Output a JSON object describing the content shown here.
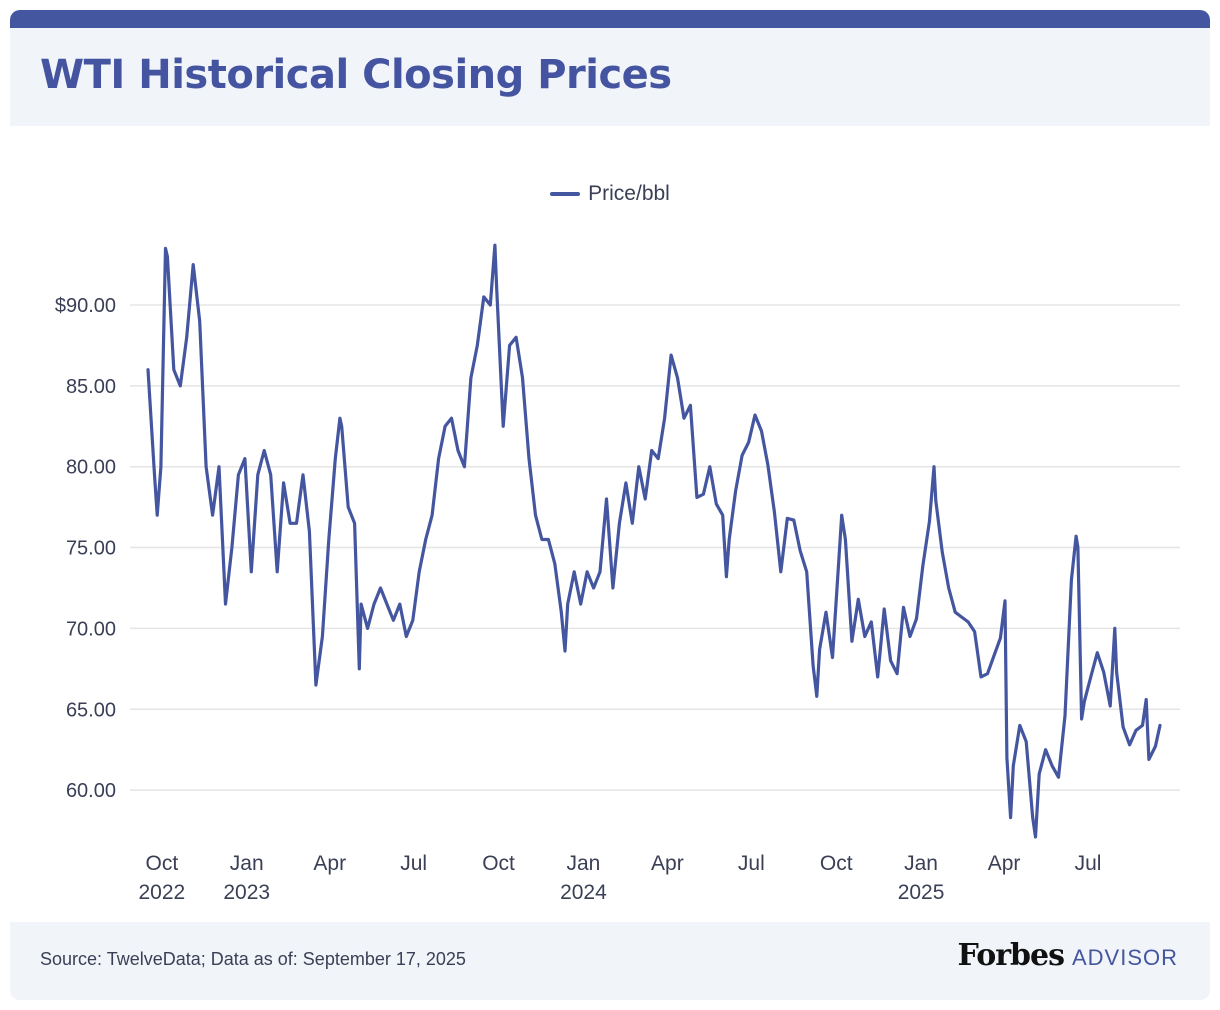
{
  "header": {
    "title": "WTI Historical Closing Prices"
  },
  "footer": {
    "source": "Source: TwelveData; Data as of: September 17, 2025",
    "logo_main": "Forbes",
    "logo_sub": "ADVISOR"
  },
  "colors": {
    "line": "#4556a0",
    "title": "#4454a0",
    "band": "#f1f4f9",
    "grid": "#e5e5e5"
  },
  "chart_data": {
    "type": "line",
    "title": "WTI Historical Closing Prices",
    "legend": {
      "position": "top",
      "entries": [
        "Price/bbl"
      ]
    },
    "grid": "horizontal",
    "ylim": [
      57,
      95
    ],
    "y_ticks": [
      {
        "v": 90,
        "label": "$90.00"
      },
      {
        "v": 85,
        "label": "85.00"
      },
      {
        "v": 80,
        "label": "80.00"
      },
      {
        "v": 75,
        "label": "75.00"
      },
      {
        "v": 70,
        "label": "70.00"
      },
      {
        "v": 65,
        "label": "65.00"
      },
      {
        "v": 60,
        "label": "60.00"
      }
    ],
    "x_ticks": [
      {
        "date": "2022-10-01",
        "label": "Oct",
        "year": "2022"
      },
      {
        "date": "2023-01-01",
        "label": "Jan",
        "year": "2023"
      },
      {
        "date": "2023-04-01",
        "label": "Apr",
        "year": ""
      },
      {
        "date": "2023-07-01",
        "label": "Jul",
        "year": ""
      },
      {
        "date": "2023-10-01",
        "label": "Oct",
        "year": ""
      },
      {
        "date": "2024-01-01",
        "label": "Jan",
        "year": "2024"
      },
      {
        "date": "2024-04-01",
        "label": "Apr",
        "year": ""
      },
      {
        "date": "2024-07-01",
        "label": "Jul",
        "year": ""
      },
      {
        "date": "2024-10-01",
        "label": "Oct",
        "year": ""
      },
      {
        "date": "2025-01-01",
        "label": "Jan",
        "year": "2025"
      },
      {
        "date": "2025-04-01",
        "label": "Apr",
        "year": ""
      },
      {
        "date": "2025-07-01",
        "label": "Jul",
        "year": ""
      }
    ],
    "series": [
      {
        "name": "Price/bbl",
        "points": [
          [
            "2022-09-16",
            86
          ],
          [
            "2022-09-23",
            79.5
          ],
          [
            "2022-09-26",
            77
          ],
          [
            "2022-09-30",
            80
          ],
          [
            "2022-10-05",
            93.5
          ],
          [
            "2022-10-07",
            93
          ],
          [
            "2022-10-14",
            86
          ],
          [
            "2022-10-21",
            85
          ],
          [
            "2022-10-28",
            88
          ],
          [
            "2022-11-04",
            92.5
          ],
          [
            "2022-11-11",
            89
          ],
          [
            "2022-11-18",
            80
          ],
          [
            "2022-11-25",
            77
          ],
          [
            "2022-12-02",
            80
          ],
          [
            "2022-12-09",
            71.5
          ],
          [
            "2022-12-16",
            75
          ],
          [
            "2022-12-23",
            79.5
          ],
          [
            "2022-12-30",
            80.5
          ],
          [
            "2023-01-06",
            73.5
          ],
          [
            "2023-01-13",
            79.5
          ],
          [
            "2023-01-20",
            81
          ],
          [
            "2023-01-27",
            79.5
          ],
          [
            "2023-02-03",
            73.5
          ],
          [
            "2023-02-10",
            79
          ],
          [
            "2023-02-17",
            76.5
          ],
          [
            "2023-02-24",
            76.5
          ],
          [
            "2023-03-03",
            79.5
          ],
          [
            "2023-03-10",
            76
          ],
          [
            "2023-03-17",
            66.5
          ],
          [
            "2023-03-24",
            69.5
          ],
          [
            "2023-03-31",
            75.5
          ],
          [
            "2023-04-07",
            80.5
          ],
          [
            "2023-04-12",
            83
          ],
          [
            "2023-04-14",
            82.5
          ],
          [
            "2023-04-21",
            77.5
          ],
          [
            "2023-04-28",
            76.5
          ],
          [
            "2023-05-03",
            67.5
          ],
          [
            "2023-05-05",
            71.5
          ],
          [
            "2023-05-12",
            70
          ],
          [
            "2023-05-19",
            71.5
          ],
          [
            "2023-05-26",
            72.5
          ],
          [
            "2023-06-02",
            71.5
          ],
          [
            "2023-06-09",
            70.5
          ],
          [
            "2023-06-16",
            71.5
          ],
          [
            "2023-06-23",
            69.5
          ],
          [
            "2023-06-30",
            70.5
          ],
          [
            "2023-07-07",
            73.5
          ],
          [
            "2023-07-14",
            75.5
          ],
          [
            "2023-07-21",
            77
          ],
          [
            "2023-07-28",
            80.5
          ],
          [
            "2023-08-04",
            82.5
          ],
          [
            "2023-08-11",
            83
          ],
          [
            "2023-08-18",
            81
          ],
          [
            "2023-08-25",
            80
          ],
          [
            "2023-09-01",
            85.5
          ],
          [
            "2023-09-08",
            87.5
          ],
          [
            "2023-09-15",
            90.5
          ],
          [
            "2023-09-22",
            90
          ],
          [
            "2023-09-27",
            93.7
          ],
          [
            "2023-09-29",
            91
          ],
          [
            "2023-10-06",
            82.5
          ],
          [
            "2023-10-13",
            87.5
          ],
          [
            "2023-10-20",
            88
          ],
          [
            "2023-10-27",
            85.5
          ],
          [
            "2023-11-03",
            80.5
          ],
          [
            "2023-11-10",
            77
          ],
          [
            "2023-11-17",
            75.5
          ],
          [
            "2023-11-24",
            75.5
          ],
          [
            "2023-12-01",
            74
          ],
          [
            "2023-12-08",
            71
          ],
          [
            "2023-12-12",
            68.6
          ],
          [
            "2023-12-15",
            71.5
          ],
          [
            "2023-12-22",
            73.5
          ],
          [
            "2023-12-29",
            71.5
          ],
          [
            "2024-01-05",
            73.5
          ],
          [
            "2024-01-12",
            72.5
          ],
          [
            "2024-01-19",
            73.5
          ],
          [
            "2024-01-26",
            78
          ],
          [
            "2024-02-02",
            72.5
          ],
          [
            "2024-02-09",
            76.5
          ],
          [
            "2024-02-16",
            79
          ],
          [
            "2024-02-23",
            76.5
          ],
          [
            "2024-03-01",
            80
          ],
          [
            "2024-03-08",
            78
          ],
          [
            "2024-03-15",
            81
          ],
          [
            "2024-03-22",
            80.5
          ],
          [
            "2024-03-29",
            83
          ],
          [
            "2024-04-05",
            86.9
          ],
          [
            "2024-04-12",
            85.5
          ],
          [
            "2024-04-19",
            83
          ],
          [
            "2024-04-26",
            83.8
          ],
          [
            "2024-05-03",
            78.1
          ],
          [
            "2024-05-10",
            78.3
          ],
          [
            "2024-05-17",
            80
          ],
          [
            "2024-05-24",
            77.7
          ],
          [
            "2024-05-31",
            77
          ],
          [
            "2024-06-04",
            73.2
          ],
          [
            "2024-06-07",
            75.5
          ],
          [
            "2024-06-14",
            78.5
          ],
          [
            "2024-06-21",
            80.7
          ],
          [
            "2024-06-28",
            81.5
          ],
          [
            "2024-07-05",
            83.2
          ],
          [
            "2024-07-12",
            82.2
          ],
          [
            "2024-07-19",
            80.1
          ],
          [
            "2024-07-26",
            77.2
          ],
          [
            "2024-08-02",
            73.5
          ],
          [
            "2024-08-09",
            76.8
          ],
          [
            "2024-08-16",
            76.7
          ],
          [
            "2024-08-23",
            74.8
          ],
          [
            "2024-08-30",
            73.5
          ],
          [
            "2024-09-06",
            67.7
          ],
          [
            "2024-09-10",
            65.8
          ],
          [
            "2024-09-13",
            68.7
          ],
          [
            "2024-09-20",
            71
          ],
          [
            "2024-09-27",
            68.2
          ],
          [
            "2024-10-04",
            74.4
          ],
          [
            "2024-10-07",
            77
          ],
          [
            "2024-10-11",
            75.5
          ],
          [
            "2024-10-18",
            69.2
          ],
          [
            "2024-10-25",
            71.8
          ],
          [
            "2024-11-01",
            69.5
          ],
          [
            "2024-11-08",
            70.4
          ],
          [
            "2024-11-15",
            67
          ],
          [
            "2024-11-22",
            71.2
          ],
          [
            "2024-11-29",
            68
          ],
          [
            "2024-12-06",
            67.2
          ],
          [
            "2024-12-13",
            71.3
          ],
          [
            "2024-12-20",
            69.5
          ],
          [
            "2024-12-27",
            70.6
          ],
          [
            "2025-01-03",
            73.9
          ],
          [
            "2025-01-10",
            76.6
          ],
          [
            "2025-01-15",
            80
          ],
          [
            "2025-01-17",
            77.9
          ],
          [
            "2025-01-24",
            74.7
          ],
          [
            "2025-01-31",
            72.5
          ],
          [
            "2025-02-07",
            71
          ],
          [
            "2025-02-14",
            70.7
          ],
          [
            "2025-02-21",
            70.4
          ],
          [
            "2025-02-28",
            69.8
          ],
          [
            "2025-03-07",
            67
          ],
          [
            "2025-03-14",
            67.2
          ],
          [
            "2025-03-21",
            68.3
          ],
          [
            "2025-03-28",
            69.4
          ],
          [
            "2025-04-02",
            71.7
          ],
          [
            "2025-04-04",
            61.99
          ],
          [
            "2025-04-08",
            58.3
          ],
          [
            "2025-04-11",
            61.5
          ],
          [
            "2025-04-18",
            64
          ],
          [
            "2025-04-25",
            63
          ],
          [
            "2025-05-02",
            58.3
          ],
          [
            "2025-05-05",
            57.1
          ],
          [
            "2025-05-09",
            61
          ],
          [
            "2025-05-16",
            62.5
          ],
          [
            "2025-05-23",
            61.5
          ],
          [
            "2025-05-30",
            60.8
          ],
          [
            "2025-06-06",
            64.6
          ],
          [
            "2025-06-13",
            73
          ],
          [
            "2025-06-18",
            75.7
          ],
          [
            "2025-06-20",
            75
          ],
          [
            "2025-06-24",
            64.4
          ],
          [
            "2025-06-27",
            65.5
          ],
          [
            "2025-07-04",
            67
          ],
          [
            "2025-07-11",
            68.5
          ],
          [
            "2025-07-18",
            67.3
          ],
          [
            "2025-07-25",
            65.2
          ],
          [
            "2025-07-30",
            70
          ],
          [
            "2025-08-01",
            67.3
          ],
          [
            "2025-08-08",
            63.9
          ],
          [
            "2025-08-15",
            62.8
          ],
          [
            "2025-08-22",
            63.7
          ],
          [
            "2025-08-29",
            64
          ],
          [
            "2025-09-02",
            65.6
          ],
          [
            "2025-09-05",
            61.9
          ],
          [
            "2025-09-12",
            62.7
          ],
          [
            "2025-09-17",
            64
          ]
        ]
      }
    ]
  }
}
